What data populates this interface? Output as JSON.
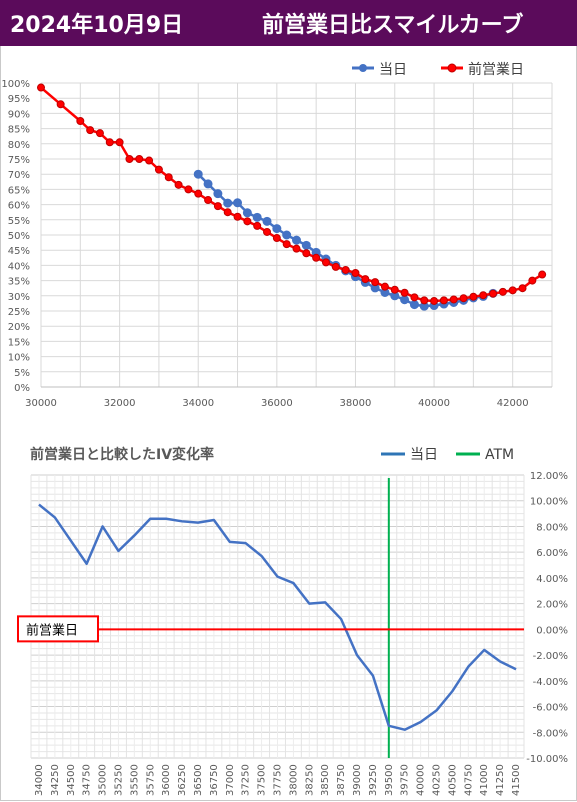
{
  "header": {
    "date": "2024年10月9日",
    "title": "前営業日比スマイルカーブ",
    "bg_color": "#5b0b5b"
  },
  "chart_data": [
    {
      "type": "line",
      "title": "",
      "xlabel": "",
      "ylabel": "",
      "xlim": [
        30000,
        43000
      ],
      "ylim": [
        0,
        100
      ],
      "x_ticks": [
        "30000",
        "32000",
        "34000",
        "36000",
        "38000",
        "40000",
        "42000"
      ],
      "y_ticks": [
        "0%",
        "5%",
        "10%",
        "15%",
        "20%",
        "25%",
        "30%",
        "35%",
        "40%",
        "45%",
        "50%",
        "55%",
        "60%",
        "65%",
        "70%",
        "75%",
        "80%",
        "85%",
        "90%",
        "95%",
        "100%"
      ],
      "grid": true,
      "legend": "top-right",
      "series": [
        {
          "name": "当日",
          "color": "#4472c4",
          "x": [
            34000,
            34250,
            34500,
            34750,
            35000,
            35250,
            35500,
            35750,
            36000,
            36250,
            36500,
            36750,
            37000,
            37250,
            37500,
            37750,
            38000,
            38250,
            38500,
            38750,
            39000,
            39250,
            39500,
            39750,
            40000,
            40250,
            40500,
            40750,
            41000,
            41250,
            41500
          ],
          "y": [
            70.0,
            66.8,
            63.6,
            60.5,
            60.6,
            57.3,
            55.8,
            54.5,
            52.1,
            50.0,
            48.3,
            46.6,
            44.3,
            42.1,
            40.0,
            38.2,
            36.3,
            34.4,
            32.6,
            31.1,
            30.0,
            28.7,
            27.1,
            26.6,
            26.8,
            27.3,
            27.8,
            28.5,
            29.3,
            29.8,
            30.8
          ]
        },
        {
          "name": "前営業日",
          "color": "#ff0000",
          "x": [
            30000,
            30500,
            31000,
            31250,
            31500,
            31750,
            32000,
            32250,
            32500,
            32750,
            33000,
            33250,
            33500,
            33750,
            34000,
            34250,
            34500,
            34750,
            35000,
            35250,
            35500,
            35750,
            36000,
            36250,
            36500,
            36750,
            37000,
            37250,
            37500,
            37750,
            38000,
            38250,
            38500,
            38750,
            39000,
            39250,
            39500,
            39750,
            40000,
            40250,
            40500,
            40750,
            41000,
            41250,
            41500,
            41750,
            42000,
            42250,
            42500,
            42750
          ],
          "y": [
            98.5,
            93.0,
            87.5,
            84.5,
            83.5,
            80.5,
            80.5,
            75.0,
            75.0,
            74.5,
            71.5,
            69.0,
            66.5,
            65.0,
            63.6,
            61.5,
            59.5,
            57.5,
            56.0,
            54.5,
            53.0,
            51.0,
            49.0,
            47.0,
            45.5,
            44.0,
            42.5,
            41.0,
            39.5,
            38.5,
            37.5,
            35.5,
            34.5,
            33.0,
            32.0,
            31.0,
            29.5,
            28.5,
            28.3,
            28.5,
            28.8,
            29.2,
            29.7,
            30.2,
            30.7,
            31.3,
            31.8,
            32.5,
            35.0,
            37.0
          ]
        }
      ]
    },
    {
      "type": "line",
      "title": "前営業日と比較したIV変化率",
      "xlabel": "",
      "ylabel": "",
      "ylim": [
        -10,
        12
      ],
      "y_ticks": [
        "-10.00%",
        "-8.00%",
        "-6.00%",
        "-4.00%",
        "-2.00%",
        "0.00%",
        "2.00%",
        "4.00%",
        "6.00%",
        "8.00%",
        "10.00%",
        "12.00%"
      ],
      "categories": [
        "34000",
        "34250",
        "34500",
        "34750",
        "35000",
        "35250",
        "35500",
        "35750",
        "36000",
        "36250",
        "36500",
        "36750",
        "37000",
        "37250",
        "37500",
        "37750",
        "38000",
        "38250",
        "38500",
        "38750",
        "39000",
        "39250",
        "39500",
        "39750",
        "40000",
        "40250",
        "40500",
        "40750",
        "41000",
        "41250",
        "41500"
      ],
      "grid": true,
      "legend": "top-right",
      "series": [
        {
          "name": "当日",
          "color": "#4472c4",
          "values": [
            9.7,
            8.7,
            6.9,
            5.1,
            8.0,
            6.1,
            7.3,
            8.6,
            8.6,
            8.4,
            8.3,
            8.5,
            6.8,
            6.7,
            5.7,
            4.1,
            3.6,
            2.0,
            2.1,
            0.8,
            -2.0,
            -3.6,
            -7.5,
            -7.8,
            -7.2,
            -6.3,
            -4.8,
            -2.9,
            -1.6,
            -2.5,
            -3.1
          ]
        },
        {
          "name": "ATM",
          "color": "#00b050",
          "value": 39500
        }
      ],
      "annotations": [
        {
          "label": "前営業日",
          "value": 0.0,
          "color": "#ff0000"
        }
      ]
    }
  ]
}
